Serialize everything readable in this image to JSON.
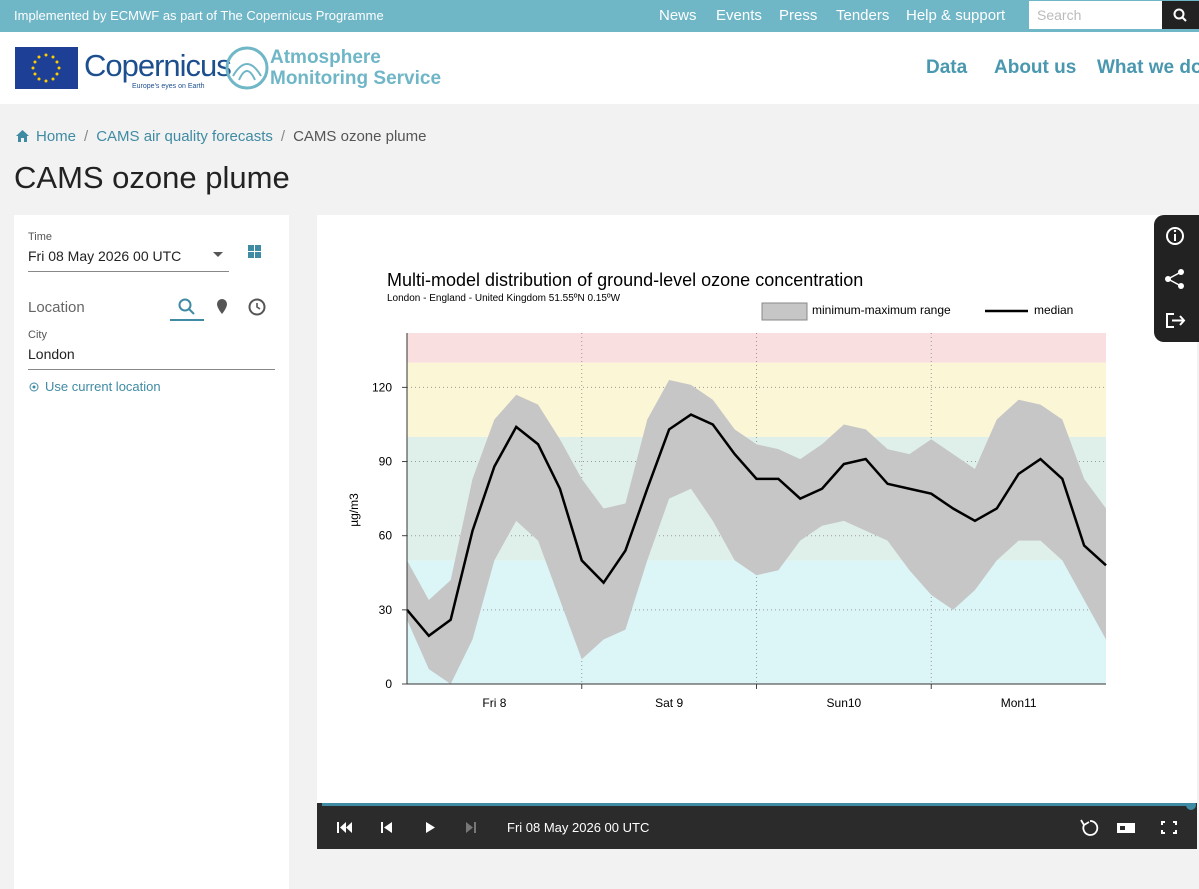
{
  "header": {
    "tagline": "Implemented by ECMWF as part of The Copernicus Programme",
    "nav": [
      "News",
      "Events",
      "Press",
      "Tenders",
      "Help & support"
    ],
    "search_placeholder": "Search"
  },
  "brand": {
    "copernicus": "Copernicus",
    "motto": "Europe's eyes on Earth",
    "service": [
      "Atmosphere",
      "Monitoring Service"
    ]
  },
  "main_nav": [
    "Data",
    "About us",
    "What we do"
  ],
  "breadcrumbs": [
    "Home",
    "CAMS air quality forecasts",
    "CAMS ozone plume"
  ],
  "page_title": "CAMS ozone plume",
  "form": {
    "time_label": "Time",
    "time_value": "Fri 08 May 2026 00 UTC",
    "location_label": "Location",
    "city_label": "City",
    "city_value": "London",
    "use_location": "Use current location"
  },
  "player": {
    "time": "Fri 08 May 2026 00 UTC"
  },
  "chart_data": {
    "type": "band-line",
    "title": "Multi-model distribution of ground-level ozone concentration",
    "subtitle": "London - England - United Kingdom 51.55ºN 0.15ºW",
    "y_label": "µg/m3",
    "x": [
      0,
      3,
      6,
      9,
      12,
      15,
      18,
      21,
      24,
      27,
      30,
      33,
      36,
      39,
      42,
      45,
      48,
      51,
      54,
      57,
      60,
      63,
      66,
      69,
      72,
      75,
      78,
      81,
      84,
      87,
      90,
      93,
      96
    ],
    "xlim": [
      0,
      96
    ],
    "xticks": [
      {
        "value": 12,
        "label": "Fri 8"
      },
      {
        "value": 36,
        "label": "Sat 9"
      },
      {
        "value": 60,
        "label": "Sun10"
      },
      {
        "value": 84,
        "label": "Mon11"
      }
    ],
    "x_gridlines": [
      24,
      48,
      72
    ],
    "ylim": [
      0,
      142
    ],
    "yticks": [
      0,
      30,
      60,
      90,
      120
    ],
    "grid": true,
    "bands": [
      {
        "from": 0,
        "to": 50,
        "color": "#dcf6f8"
      },
      {
        "from": 50,
        "to": 100,
        "color": "#dff0eb"
      },
      {
        "from": 100,
        "to": 130,
        "color": "#faf6d6"
      },
      {
        "from": 130,
        "to": 142,
        "color": "#f9dfe0"
      }
    ],
    "series": [
      {
        "name": "minimum-maximum range",
        "color": "#c6c6c6",
        "upper": [
          50,
          34,
          42,
          83,
          107,
          117,
          113,
          99,
          83,
          71,
          73,
          107,
          123,
          121,
          115,
          103,
          97,
          95,
          91,
          97,
          105,
          103,
          95,
          93,
          99,
          93,
          87,
          107,
          115,
          113,
          107,
          83,
          71
        ],
        "lower": [
          26,
          6,
          0,
          18,
          50,
          66,
          58,
          34,
          10,
          18,
          22,
          50,
          75,
          79,
          66,
          50,
          44,
          46,
          58,
          64,
          66,
          62,
          58,
          46,
          36,
          30,
          38,
          50,
          58,
          58,
          50,
          34,
          18
        ]
      },
      {
        "name": "median",
        "color": "#000000",
        "values": [
          30,
          19.5,
          26,
          62,
          88,
          104,
          97,
          79,
          50,
          41,
          54,
          79,
          103,
          109,
          105,
          93,
          83,
          83,
          75,
          79,
          89,
          91,
          81,
          79,
          77,
          71,
          66,
          71,
          85,
          91,
          83,
          56,
          48
        ]
      }
    ]
  }
}
